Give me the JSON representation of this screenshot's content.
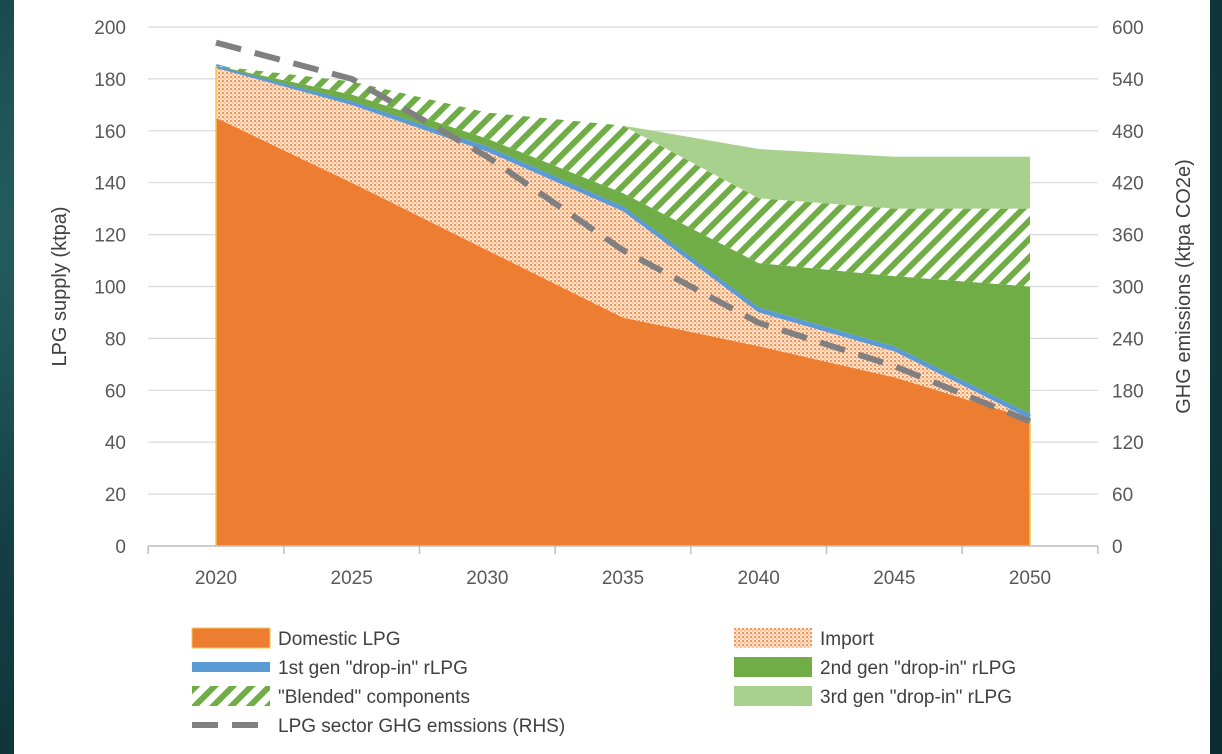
{
  "chart_data": {
    "type": "area",
    "x": [
      2020,
      2025,
      2030,
      2035,
      2040,
      2045,
      2050
    ],
    "ylabel": "LPG supply (ktpa)",
    "y2label": "GHG emissions (ktpa CO2e)",
    "ylim": [
      0,
      200
    ],
    "y2lim": [
      0,
      600
    ],
    "yticks": [
      0,
      20,
      40,
      60,
      80,
      100,
      120,
      140,
      160,
      180,
      200
    ],
    "y2ticks": [
      0,
      60,
      120,
      180,
      240,
      300,
      360,
      420,
      480,
      540,
      600
    ],
    "xticks": [
      "2020",
      "2025",
      "2030",
      "2035",
      "2040",
      "2045",
      "2050"
    ],
    "stacked": true,
    "grid": "horizontal",
    "legend_position": "bottom",
    "series": [
      {
        "name": "Domestic LPG",
        "values": [
          165,
          140,
          114,
          88,
          77,
          65,
          49
        ],
        "color": "#ED7D31",
        "style": "solid"
      },
      {
        "name": "Import",
        "values": [
          20,
          30,
          38,
          41,
          13,
          10,
          0
        ],
        "color": "#F4B183",
        "style": "dotted"
      },
      {
        "name": "1st gen \"drop-in\" rLPG",
        "values": [
          0,
          1.5,
          2,
          2,
          2,
          2,
          2
        ],
        "color": "#5B9BD5",
        "style": "solid"
      },
      {
        "name": "2nd gen \"drop-in\" rLPG",
        "values": [
          0,
          2.5,
          3,
          5,
          17,
          27,
          49
        ],
        "color": "#70AD47",
        "style": "solid"
      },
      {
        "name": "\"Blended\" components",
        "values": [
          0,
          5,
          10,
          26,
          25,
          26,
          30
        ],
        "color": "#70AD47",
        "style": "hatched"
      },
      {
        "name": "3rd gen \"drop-in\" rLPG",
        "values": [
          0,
          0,
          0,
          0,
          19,
          20,
          20
        ],
        "color": "#A9D18E",
        "style": "solid"
      }
    ],
    "line_series": {
      "name": "LPG sector GHG emssions (RHS)",
      "axis": "right",
      "values": [
        582,
        540,
        450,
        342,
        258,
        208,
        144
      ],
      "color": "#808080",
      "style": "dashed"
    }
  }
}
